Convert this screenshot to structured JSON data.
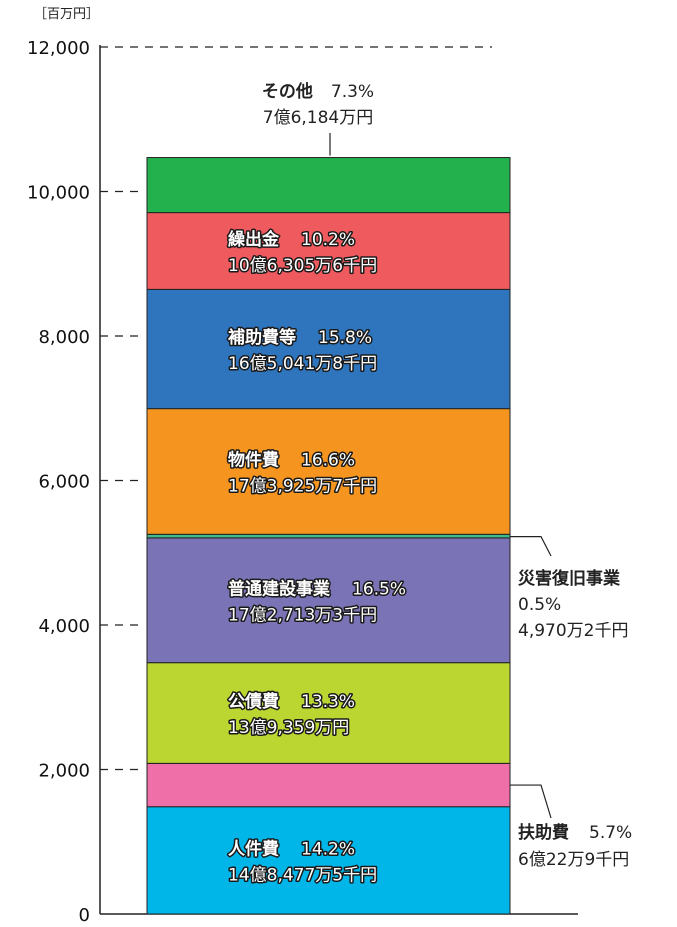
{
  "chart_data": {
    "type": "bar",
    "stacked": true,
    "unit_label": "［百万円］",
    "ylim": [
      0,
      12000
    ],
    "yticks": [
      0,
      2000,
      4000,
      6000,
      8000,
      10000,
      12000
    ],
    "ytick_labels": [
      "0",
      "2,000",
      "4,000",
      "6,000",
      "8,000",
      "10,000",
      "12,000"
    ],
    "grid": "dashed tick lines",
    "segments": [
      {
        "name": "人件費",
        "percent": "14.2%",
        "amount": "14億8,477万5千円",
        "value": 1484.775,
        "color": "#00b5e8",
        "label_position": "inside"
      },
      {
        "name": "扶助費",
        "percent": "5.7%",
        "amount": "6億22万9千円",
        "value": 600.229,
        "color": "#ef6fa8",
        "label_position": "outside-right"
      },
      {
        "name": "公債費",
        "percent": "13.3%",
        "amount": "13億9,359万円",
        "value": 1393.59,
        "color": "#bcd631",
        "label_position": "inside"
      },
      {
        "name": "普通建設事業",
        "percent": "16.5%",
        "amount": "17億2,713万3千円",
        "value": 1727.133,
        "color": "#7a73b5",
        "label_position": "inside"
      },
      {
        "name": "災害復旧事業",
        "percent": "0.5%",
        "amount": "4,970万2千円",
        "value": 49.702,
        "color": "#3fb98b",
        "label_position": "outside-right"
      },
      {
        "name": "物件費",
        "percent": "16.6%",
        "amount": "17億3,925万7千円",
        "value": 1739.257,
        "color": "#f5951f",
        "label_position": "inside"
      },
      {
        "name": "補助費等",
        "percent": "15.8%",
        "amount": "16億5,041万8千円",
        "value": 1650.418,
        "color": "#2f75be",
        "label_position": "inside"
      },
      {
        "name": "繰出金",
        "percent": "10.2%",
        "amount": "10億6,305万6千円",
        "value": 1063.056,
        "color": "#ef5a5f",
        "label_position": "inside"
      },
      {
        "name": "その他",
        "percent": "7.3%",
        "amount": "7億6,184万円",
        "value": 761.84,
        "color": "#22b14c",
        "label_position": "outside-top"
      }
    ]
  }
}
